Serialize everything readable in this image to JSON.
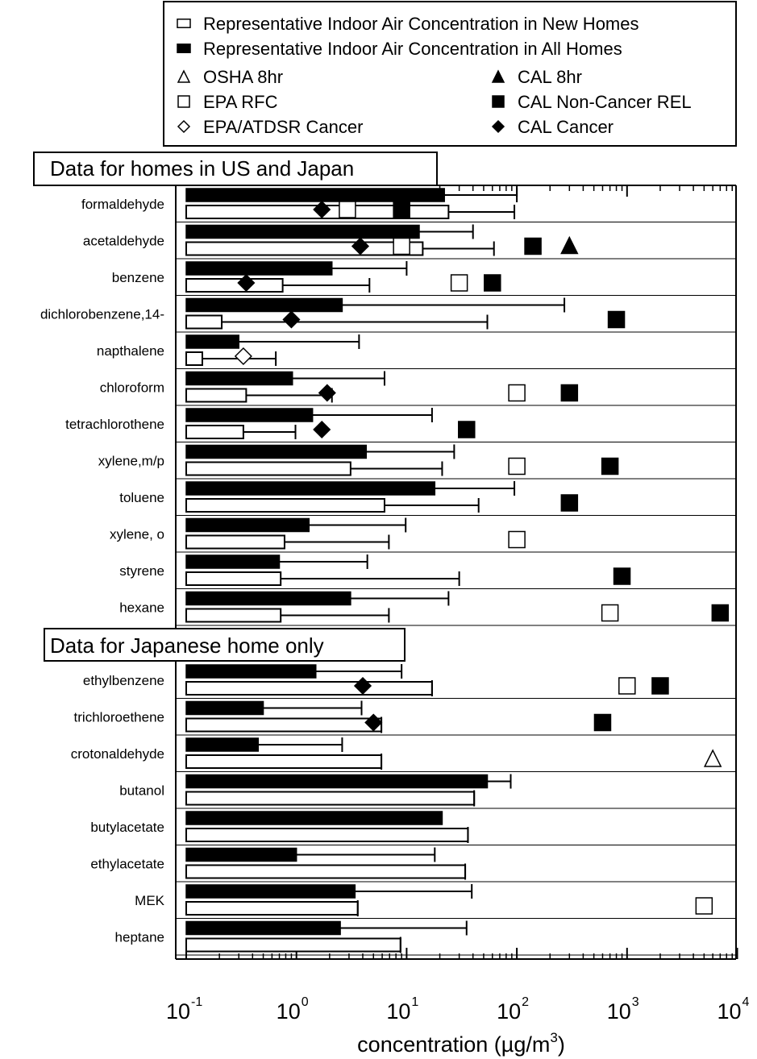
{
  "chart_data": {
    "type": "bar",
    "orientation": "horizontal",
    "scale": "log",
    "xlim": [
      0.1,
      10000
    ],
    "x_ticks": [
      0.1,
      1,
      10,
      100,
      1000,
      10000
    ],
    "x_tick_labels": [
      {
        "base": "10",
        "exp": "-1"
      },
      {
        "base": "10",
        "exp": "0"
      },
      {
        "base": "10",
        "exp": "1"
      },
      {
        "base": "10",
        "exp": "2"
      },
      {
        "base": "10",
        "exp": "3"
      },
      {
        "base": "10",
        "exp": "4"
      }
    ],
    "xlabel": {
      "pre": "concentration (",
      "unit": "µg/m",
      "exp": "3",
      "post": ")"
    },
    "legend": [
      {
        "key": "new",
        "marker": "bar-open",
        "label": "Representative Indoor Air Concentration in New Homes"
      },
      {
        "key": "all",
        "marker": "bar-filled",
        "label": "Representative Indoor Air Concentration in All Homes"
      },
      {
        "key": "osha",
        "marker": "triangle-open",
        "label": "OSHA 8hr"
      },
      {
        "key": "cal8",
        "marker": "triangle-filled",
        "label": "CAL 8hr"
      },
      {
        "key": "epa_rfc",
        "marker": "square-open",
        "label": "EPA RFC"
      },
      {
        "key": "cal_rel",
        "marker": "square-filled",
        "label": "CAL Non-Cancer REL"
      },
      {
        "key": "epa_cancer",
        "marker": "diamond-open",
        "label": "EPA/ATDSR Cancer"
      },
      {
        "key": "cal_cancer",
        "marker": "diamond-filled",
        "label": "CAL Cancer"
      }
    ],
    "sections": [
      {
        "title": "Data for homes in US and Japan",
        "rows": [
          {
            "name": "formaldehyde",
            "all": [
              22,
              100
            ],
            "new": [
              24,
              95
            ],
            "markers": [
              [
                "cal_cancer",
                1.7
              ],
              [
                "epa_rfc",
                2.9
              ],
              [
                "cal_rel",
                9
              ]
            ]
          },
          {
            "name": "acetaldehyde",
            "all": [
              13,
              40
            ],
            "new": [
              14,
              62
            ],
            "markers": [
              [
                "cal_cancer",
                3.8
              ],
              [
                "epa_rfc",
                9
              ],
              [
                "cal_rel",
                140
              ],
              [
                "cal8",
                300
              ]
            ]
          },
          {
            "name": "benzene",
            "all": [
              2.1,
              10
            ],
            "new": [
              0.75,
              4.6
            ],
            "markers": [
              [
                "cal_cancer",
                0.35
              ],
              [
                "epa_rfc",
                30
              ],
              [
                "cal_rel",
                60
              ]
            ]
          },
          {
            "name": "dichlorobenzene,14-",
            "all": [
              2.6,
              270
            ],
            "new": [
              0.21,
              54
            ],
            "markers": [
              [
                "cal_cancer",
                0.9
              ],
              [
                "cal_rel",
                800
              ]
            ]
          },
          {
            "name": "napthalene",
            "all": [
              0.3,
              3.7
            ],
            "new": [
              0.14,
              0.65
            ],
            "markers": [
              [
                "epa_cancer",
                0.33
              ]
            ]
          },
          {
            "name": "chloroform",
            "all": [
              0.92,
              6.3
            ],
            "new": [
              0.35,
              2.1
            ],
            "markers": [
              [
                "cal_cancer",
                1.9
              ],
              [
                "epa_rfc",
                100
              ],
              [
                "cal_rel",
                300
              ]
            ]
          },
          {
            "name": "tetrachlorothene",
            "all": [
              1.4,
              17
            ],
            "new": [
              0.33,
              0.98
            ],
            "markers": [
              [
                "cal_cancer",
                1.7
              ],
              [
                "cal_rel",
                35
              ]
            ]
          },
          {
            "name": "xylene,m/p",
            "all": [
              4.3,
              27
            ],
            "new": [
              3.1,
              21
            ],
            "markers": [
              [
                "epa_rfc",
                100
              ],
              [
                "cal_rel",
                700
              ]
            ]
          },
          {
            "name": "toluene",
            "all": [
              18,
              95
            ],
            "new": [
              6.3,
              45
            ],
            "markers": [
              [
                "cal_rel",
                300
              ]
            ]
          },
          {
            "name": "xylene, o",
            "all": [
              1.3,
              9.8
            ],
            "new": [
              0.78,
              6.9
            ],
            "markers": [
              [
                "epa_rfc",
                100
              ]
            ]
          },
          {
            "name": "styrene",
            "all": [
              0.7,
              4.4
            ],
            "new": [
              0.72,
              30
            ],
            "markers": [
              [
                "cal_rel",
                900
              ]
            ]
          },
          {
            "name": "hexane",
            "all": [
              3.1,
              24
            ],
            "new": [
              0.72,
              6.9
            ],
            "markers": [
              [
                "epa_rfc",
                700
              ],
              [
                "cal_rel",
                7000
              ]
            ]
          }
        ]
      },
      {
        "title": "Data for Japanese home only",
        "rows": [
          {
            "name": "ethylbenzene",
            "all": [
              1.5,
              9
            ],
            "new": [
              17,
              17
            ],
            "markers": [
              [
                "cal_cancer",
                4
              ],
              [
                "epa_rfc",
                1000
              ],
              [
                "cal_rel",
                2000
              ]
            ]
          },
          {
            "name": "trichloroethene",
            "all": [
              0.5,
              3.9
            ],
            "new": [
              5.9,
              5.9
            ],
            "markers": [
              [
                "cal_cancer",
                5
              ],
              [
                "cal_rel",
                600
              ]
            ]
          },
          {
            "name": "crotonaldehyde",
            "all": [
              0.45,
              2.6
            ],
            "new": [
              5.9,
              5.9
            ],
            "markers": [
              [
                "osha",
                6000
              ]
            ]
          },
          {
            "name": "butanol",
            "all": [
              54,
              88
            ],
            "new": [
              41,
              41
            ],
            "markers": []
          },
          {
            "name": "butylacetate",
            "all": [
              21,
              21
            ],
            "new": [
              36,
              36
            ],
            "markers": []
          },
          {
            "name": "ethylacetate",
            "all": [
              1,
              18
            ],
            "new": [
              34,
              34
            ],
            "markers": []
          },
          {
            "name": "MEK",
            "all": [
              3.4,
              39
            ],
            "new": [
              3.6,
              3.6
            ],
            "markers": [
              [
                "epa_rfc",
                5000
              ]
            ]
          },
          {
            "name": "heptane",
            "all": [
              2.5,
              35
            ],
            "new": [
              8.8,
              8.8
            ],
            "markers": []
          }
        ]
      }
    ]
  }
}
